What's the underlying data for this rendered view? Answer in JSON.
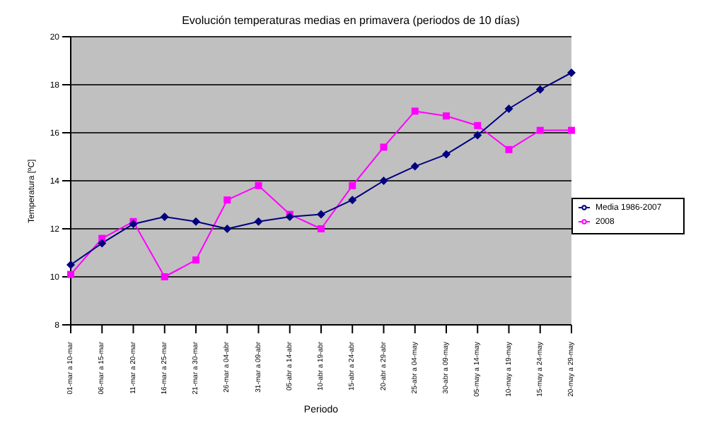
{
  "chart_data": {
    "type": "line",
    "title": "Evolución temperaturas medias en primavera (periodos de 10 días)",
    "xlabel": "Periodo",
    "ylabel": "Temperatura [ºC]",
    "categories": [
      "01-mar a 10-mar",
      "06-mar a 15-mar",
      "11-mar a 20-mar",
      "16-mar a 25-mar",
      "21-mar a 30-mar",
      "26-mar a 04-abr",
      "31-mar a 09-abr",
      "05-abr a 14-abr",
      "10-abr a 19-abr",
      "15-abr a 24-abr",
      "20-abr a 29-abr",
      "25-abr a 04-may",
      "30-abr a 09-may",
      "05-may a 14-may",
      "10-may a 19-may",
      "15-may a 24-may",
      "20-may a 29-may"
    ],
    "series": [
      {
        "name": "Media 1986-2007",
        "color": "#000080",
        "marker": "diamond",
        "values": [
          10.5,
          11.4,
          12.2,
          12.5,
          12.3,
          12.0,
          12.3,
          12.5,
          12.6,
          13.2,
          14.0,
          14.6,
          15.1,
          15.9,
          17.0,
          17.8,
          18.5
        ]
      },
      {
        "name": "2008",
        "color": "#ff00ff",
        "marker": "square",
        "values": [
          10.1,
          11.6,
          12.3,
          10.0,
          10.7,
          13.2,
          13.8,
          12.6,
          12.0,
          13.8,
          15.4,
          16.9,
          16.7,
          16.3,
          15.3,
          16.1,
          16.1
        ]
      }
    ],
    "ylim": [
      8,
      20
    ],
    "yticks": [
      8,
      10,
      12,
      14,
      16,
      18,
      20
    ],
    "grid": "y",
    "legend": "right"
  }
}
